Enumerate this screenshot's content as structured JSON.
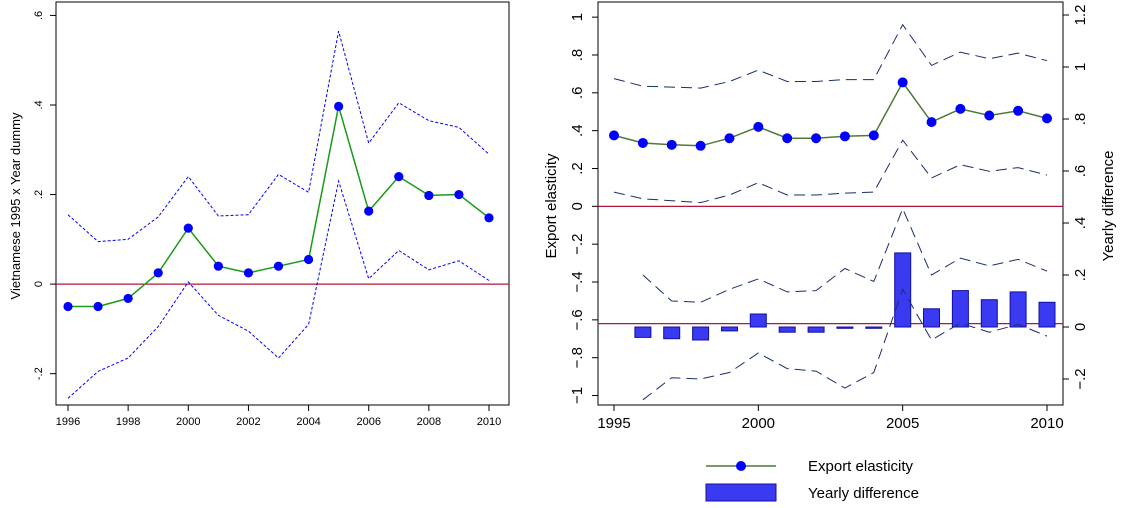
{
  "colors": {
    "point_blue": "#0000ff",
    "line_green": "#1a9a1a",
    "line_olive": "#4d7a3a",
    "ci_blue": "#0000ff",
    "ci_navy": "#1a2f6b",
    "zero_red": "#b0173c",
    "bar_fill": "#3a3af2",
    "bar_edge": "#1010a0"
  },
  "chart_data": [
    {
      "type": "line",
      "title": "",
      "xlabel": "",
      "ylabel": "Vietnamese 1995 x Year dummy",
      "xlim": [
        1996,
        2010
      ],
      "ylim": [
        -0.27,
        0.63
      ],
      "x_ticks": [
        1996,
        1998,
        2000,
        2002,
        2004,
        2006,
        2008,
        2010
      ],
      "y_ticks": [
        -0.2,
        0,
        0.2,
        0.4,
        0.6
      ],
      "y_tick_labels": [
        "-.2",
        "0",
        ".2",
        ".4",
        ".6"
      ],
      "reference_line": 0,
      "grid": false,
      "x": [
        1996,
        1997,
        1998,
        1999,
        2000,
        2001,
        2002,
        2003,
        2004,
        2005,
        2006,
        2007,
        2008,
        2009,
        2010
      ],
      "series": [
        {
          "values": [
            -0.05,
            -0.05,
            -0.032,
            0.025,
            0.125,
            0.04,
            0.025,
            0.04,
            0.055,
            0.397,
            0.163,
            0.24,
            0.198,
            0.2,
            0.148
          ]
        },
        {
          "style": "dotted-upper",
          "values": [
            0.155,
            0.095,
            0.1,
            0.15,
            0.24,
            0.152,
            0.155,
            0.245,
            0.205,
            0.565,
            0.315,
            0.405,
            0.365,
            0.35,
            0.29
          ]
        },
        {
          "style": "dotted-lower",
          "values": [
            -0.255,
            -0.195,
            -0.165,
            -0.095,
            0.005,
            -0.07,
            -0.105,
            -0.165,
            -0.09,
            0.23,
            0.012,
            0.075,
            0.032,
            0.052,
            0.008
          ]
        }
      ]
    },
    {
      "type": "line",
      "title": "",
      "xlabel": "",
      "ylabel": "Export elasticity",
      "ylabel_right": "Yearly difference",
      "xlim": [
        1995,
        2010
      ],
      "ylim": [
        -1.05,
        1.08
      ],
      "ylim_right": [
        -0.3,
        1.25
      ],
      "x_ticks": [
        1995,
        2000,
        2005,
        2010
      ],
      "y_ticks": [
        -1,
        -0.8,
        -0.6,
        -0.4,
        -0.2,
        0,
        0.2,
        0.4,
        0.6,
        0.8,
        1
      ],
      "y_tick_labels": [
        "−1",
        "−.8",
        "−.6",
        "−.4",
        "−.2",
        "0",
        ".2",
        ".4",
        ".6",
        ".8",
        "1"
      ],
      "y_ticks_right": [
        -0.2,
        0,
        0.2,
        0.4,
        0.6,
        0.8,
        1,
        1.2
      ],
      "y_tick_labels_right": [
        "−.2",
        "0",
        ".2",
        ".4",
        ".6",
        ".8",
        "1",
        "1.2"
      ],
      "reference_lines": [
        0,
        -0.62
      ],
      "grid": false,
      "legend_position": "bottom",
      "x": [
        1995,
        1996,
        1997,
        1998,
        1999,
        2000,
        2001,
        2002,
        2003,
        2004,
        2005,
        2006,
        2007,
        2008,
        2009,
        2010
      ],
      "series": [
        {
          "name": "Export elasticity",
          "axis": "left",
          "values": [
            0.375,
            0.335,
            0.325,
            0.32,
            0.36,
            0.42,
            0.36,
            0.36,
            0.37,
            0.375,
            0.655,
            0.445,
            0.515,
            0.48,
            0.505,
            0.465
          ]
        },
        {
          "style": "dashed-upper",
          "axis": "left",
          "values": [
            0.675,
            0.635,
            0.63,
            0.625,
            0.66,
            0.72,
            0.66,
            0.66,
            0.67,
            0.67,
            0.96,
            0.745,
            0.815,
            0.78,
            0.81,
            0.77
          ]
        },
        {
          "style": "dashed-lower",
          "axis": "left",
          "values": [
            0.075,
            0.04,
            0.03,
            0.02,
            0.06,
            0.125,
            0.06,
            0.06,
            0.07,
            0.075,
            0.35,
            0.15,
            0.22,
            0.185,
            0.205,
            0.165
          ]
        },
        {
          "name": "Yearly difference",
          "type": "bar",
          "axis": "right",
          "values": [
            null,
            -0.04,
            -0.045,
            -0.05,
            -0.015,
            0.05,
            -0.02,
            -0.02,
            -0.005,
            -0.005,
            0.285,
            0.07,
            0.14,
            0.105,
            0.135,
            0.095
          ]
        },
        {
          "style": "dashed-upper",
          "axis": "right",
          "values": [
            null,
            0.2,
            0.1,
            0.095,
            0.145,
            0.185,
            0.135,
            0.14,
            0.225,
            0.175,
            0.455,
            0.2,
            0.265,
            0.235,
            0.26,
            0.215
          ]
        },
        {
          "style": "dashed-lower",
          "axis": "right",
          "values": [
            null,
            -0.28,
            -0.195,
            -0.2,
            -0.175,
            -0.1,
            -0.16,
            -0.17,
            -0.235,
            -0.175,
            0.145,
            -0.05,
            0.015,
            -0.02,
            0.01,
            -0.035
          ]
        }
      ]
    }
  ]
}
